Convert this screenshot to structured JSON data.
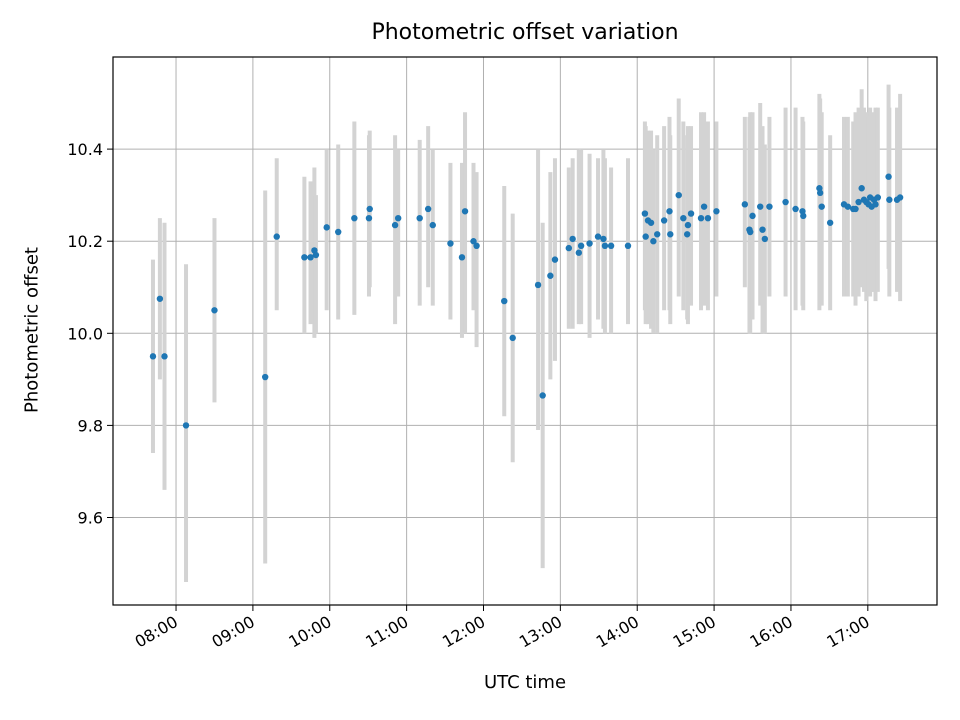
{
  "chart_data": {
    "type": "scatter",
    "title": "Photometric offset variation",
    "xlabel": "UTC time",
    "ylabel": "Photometric offset",
    "xlim": [
      7.18,
      17.9
    ],
    "ylim": [
      9.41,
      10.6
    ],
    "grid": true,
    "x_ticks": [
      {
        "value": 8,
        "label": "08:00"
      },
      {
        "value": 9,
        "label": "09:00"
      },
      {
        "value": 10,
        "label": "10:00"
      },
      {
        "value": 11,
        "label": "11:00"
      },
      {
        "value": 12,
        "label": "12:00"
      },
      {
        "value": 13,
        "label": "13:00"
      },
      {
        "value": 14,
        "label": "14:00"
      },
      {
        "value": 15,
        "label": "15:00"
      },
      {
        "value": 16,
        "label": "16:00"
      },
      {
        "value": 17,
        "label": "17:00"
      }
    ],
    "y_ticks": [
      {
        "value": 9.6,
        "label": "9.6"
      },
      {
        "value": 9.8,
        "label": "9.8"
      },
      {
        "value": 10.0,
        "label": "10.0"
      },
      {
        "value": 10.2,
        "label": "10.2"
      },
      {
        "value": 10.4,
        "label": "10.4"
      }
    ],
    "colors": {
      "marker": "#1f77b4",
      "errorbar": "#d3d3d3",
      "grid": "#b0b0b0"
    },
    "series": [
      {
        "name": "Photometric offset",
        "points": [
          [
            7.7,
            9.95,
            9.74,
            10.16
          ],
          [
            7.79,
            10.075,
            9.9,
            10.25
          ],
          [
            7.85,
            9.95,
            9.66,
            10.24
          ],
          [
            8.13,
            9.8,
            9.46,
            10.15
          ],
          [
            8.5,
            10.05,
            9.85,
            10.25
          ],
          [
            9.16,
            9.905,
            9.5,
            10.31
          ],
          [
            9.31,
            10.21,
            10.05,
            10.38
          ],
          [
            9.67,
            10.165,
            10.0,
            10.34
          ],
          [
            9.75,
            10.165,
            10.02,
            10.33
          ],
          [
            9.8,
            10.18,
            9.99,
            10.36
          ],
          [
            9.82,
            10.17,
            10.0,
            10.3
          ],
          [
            9.96,
            10.23,
            10.05,
            10.4
          ],
          [
            10.11,
            10.22,
            10.03,
            10.41
          ],
          [
            10.32,
            10.25,
            10.04,
            10.46
          ],
          [
            10.51,
            10.25,
            10.08,
            10.43
          ],
          [
            10.52,
            10.27,
            10.1,
            10.44
          ],
          [
            10.85,
            10.235,
            10.02,
            10.43
          ],
          [
            10.89,
            10.25,
            10.08,
            10.4
          ],
          [
            11.17,
            10.25,
            10.06,
            10.42
          ],
          [
            11.28,
            10.27,
            10.1,
            10.45
          ],
          [
            11.34,
            10.235,
            10.06,
            10.4
          ],
          [
            11.57,
            10.195,
            10.03,
            10.37
          ],
          [
            11.72,
            10.165,
            9.99,
            10.37
          ],
          [
            11.76,
            10.265,
            10.0,
            10.48
          ],
          [
            11.87,
            10.2,
            10.05,
            10.37
          ],
          [
            11.91,
            10.19,
            9.97,
            10.35
          ],
          [
            12.27,
            10.07,
            9.82,
            10.32
          ],
          [
            12.38,
            9.99,
            9.72,
            10.26
          ],
          [
            12.71,
            10.105,
            9.79,
            10.4
          ],
          [
            12.77,
            9.865,
            9.49,
            10.24
          ],
          [
            12.87,
            10.125,
            9.9,
            10.35
          ],
          [
            12.93,
            10.16,
            9.94,
            10.38
          ],
          [
            13.11,
            10.185,
            10.01,
            10.36
          ],
          [
            13.16,
            10.205,
            10.01,
            10.38
          ],
          [
            13.24,
            10.175,
            10.02,
            10.4
          ],
          [
            13.27,
            10.19,
            10.02,
            10.4
          ],
          [
            13.38,
            10.195,
            9.99,
            10.39
          ],
          [
            13.49,
            10.21,
            10.03,
            10.38
          ],
          [
            13.56,
            10.205,
            10.01,
            10.4
          ],
          [
            13.58,
            10.19,
            10.0,
            10.38
          ],
          [
            13.66,
            10.19,
            10.0,
            10.36
          ],
          [
            13.88,
            10.19,
            10.02,
            10.38
          ],
          [
            14.1,
            10.26,
            10.05,
            10.46
          ],
          [
            14.11,
            10.21,
            10.02,
            10.45
          ],
          [
            14.14,
            10.245,
            10.02,
            10.44
          ],
          [
            14.18,
            10.24,
            10.01,
            10.44
          ],
          [
            14.21,
            10.2,
            10.0,
            10.4
          ],
          [
            14.26,
            10.215,
            10.0,
            10.43
          ],
          [
            14.35,
            10.245,
            10.05,
            10.45
          ],
          [
            14.42,
            10.265,
            10.05,
            10.47
          ],
          [
            14.43,
            10.215,
            10.02,
            10.43
          ],
          [
            14.54,
            10.3,
            10.08,
            10.51
          ],
          [
            14.6,
            10.25,
            10.05,
            10.46
          ],
          [
            14.65,
            10.215,
            10.03,
            10.43
          ],
          [
            14.66,
            10.235,
            10.02,
            10.45
          ],
          [
            14.7,
            10.26,
            10.06,
            10.45
          ],
          [
            14.83,
            10.25,
            10.05,
            10.48
          ],
          [
            14.87,
            10.275,
            10.06,
            10.48
          ],
          [
            14.92,
            10.25,
            10.05,
            10.46
          ],
          [
            15.03,
            10.265,
            10.08,
            10.46
          ],
          [
            15.4,
            10.28,
            10.1,
            10.47
          ],
          [
            15.46,
            10.225,
            10.0,
            10.47
          ],
          [
            15.47,
            10.22,
            10.0,
            10.48
          ],
          [
            15.5,
            10.255,
            10.03,
            10.48
          ],
          [
            15.6,
            10.275,
            10.06,
            10.5
          ],
          [
            15.63,
            10.225,
            10.0,
            10.45
          ],
          [
            15.66,
            10.205,
            10.0,
            10.41
          ],
          [
            15.72,
            10.275,
            10.08,
            10.47
          ],
          [
            15.93,
            10.285,
            10.08,
            10.49
          ],
          [
            16.06,
            10.27,
            10.05,
            10.49
          ],
          [
            16.15,
            10.265,
            10.06,
            10.47
          ],
          [
            16.16,
            10.255,
            10.05,
            10.46
          ],
          [
            16.37,
            10.315,
            10.05,
            10.52
          ],
          [
            16.38,
            10.305,
            10.09,
            10.51
          ],
          [
            16.4,
            10.275,
            10.06,
            10.48
          ],
          [
            16.51,
            10.24,
            10.05,
            10.43
          ],
          [
            16.69,
            10.28,
            10.08,
            10.47
          ],
          [
            16.74,
            10.275,
            10.08,
            10.47
          ],
          [
            16.81,
            10.27,
            10.08,
            10.46
          ],
          [
            16.84,
            10.27,
            10.06,
            10.48
          ],
          [
            16.88,
            10.285,
            10.08,
            10.49
          ],
          [
            16.92,
            10.315,
            10.1,
            10.53
          ],
          [
            16.95,
            10.29,
            10.09,
            10.49
          ],
          [
            16.98,
            10.285,
            10.07,
            10.48
          ],
          [
            17.01,
            10.28,
            10.08,
            10.47
          ],
          [
            17.03,
            10.295,
            10.08,
            10.49
          ],
          [
            17.05,
            10.275,
            10.09,
            10.46
          ],
          [
            17.08,
            10.29,
            10.09,
            10.48
          ],
          [
            17.1,
            10.28,
            10.07,
            10.49
          ],
          [
            17.13,
            10.295,
            10.09,
            10.49
          ],
          [
            17.27,
            10.34,
            10.14,
            10.54
          ],
          [
            17.28,
            10.29,
            10.08,
            10.49
          ],
          [
            17.38,
            10.29,
            10.09,
            10.49
          ],
          [
            17.42,
            10.295,
            10.07,
            10.52
          ]
        ]
      }
    ]
  }
}
